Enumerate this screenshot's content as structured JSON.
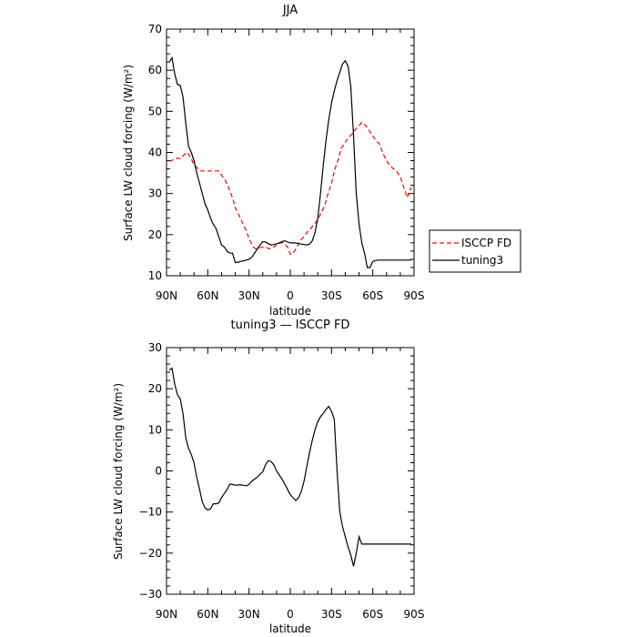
{
  "chart_data": [
    {
      "type": "line",
      "title": "JJA",
      "xlabel": "latitude",
      "ylabel": "Surface LW cloud forcing (W/m²)",
      "ylim": [
        10,
        70
      ],
      "xlim": [
        90,
        -90
      ],
      "xticks": [
        90,
        60,
        30,
        0,
        -30,
        -60,
        -90
      ],
      "xticklabels": [
        "90N",
        "60N",
        "30N",
        "0",
        "30S",
        "60S",
        "90S"
      ],
      "yticks": [
        10,
        20,
        30,
        40,
        50,
        60,
        70
      ],
      "yticklabels": [
        "10",
        "20",
        "30",
        "40",
        "50",
        "60",
        "70"
      ],
      "grid": false,
      "legend": "right",
      "series": [
        {
          "name": "ISCCP FD",
          "color": "#ff0000",
          "dash": "dashed",
          "x": [
            88,
            85,
            82,
            80,
            77,
            75,
            72,
            70,
            67,
            65,
            62,
            60,
            57,
            55,
            52,
            50,
            47,
            45,
            42,
            40,
            37,
            35,
            32,
            30,
            27,
            25,
            22,
            20,
            17,
            15,
            12,
            10,
            7,
            5,
            2,
            0,
            -2,
            -5,
            -7,
            -10,
            -12,
            -15,
            -17,
            -20,
            -22,
            -25,
            -27,
            -30,
            -32,
            -35,
            -37,
            -40,
            -42,
            -45,
            -47,
            -50,
            -52,
            -55,
            -57,
            -60,
            -62,
            -65,
            -67,
            -70,
            -72,
            -75,
            -77,
            -80,
            -82,
            -85,
            -88
          ],
          "values": [
            37.8,
            38.2,
            38.6,
            38.5,
            39.5,
            40,
            38.5,
            37,
            36,
            35.5,
            35.5,
            35.5,
            35.5,
            35.5,
            35.5,
            34.5,
            33,
            31.5,
            29,
            26.5,
            24.5,
            23,
            21,
            19,
            17,
            16.5,
            16.8,
            17,
            16.8,
            16.5,
            17,
            17.5,
            18,
            18,
            17,
            15.2,
            15.5,
            17,
            18.5,
            19.5,
            20.5,
            21.5,
            22.5,
            23.5,
            25,
            27,
            29.5,
            32.5,
            35.5,
            38.5,
            41,
            42.5,
            43.5,
            44.5,
            45.5,
            46.5,
            47.3,
            46.5,
            45.5,
            44,
            43,
            42,
            40,
            38,
            37,
            36,
            35.5,
            34,
            32,
            29,
            31.5
          ]
        },
        {
          "name": "tuning3",
          "color": "#000000",
          "dash": "solid",
          "x": [
            88,
            86,
            84,
            82,
            80,
            78,
            76,
            74,
            72,
            70,
            68,
            66,
            64,
            62,
            60,
            58,
            56,
            54,
            52,
            50,
            48,
            46,
            44,
            42,
            40,
            38,
            36,
            34,
            32,
            30,
            28,
            26,
            24,
            22,
            20,
            18,
            16,
            14,
            12,
            10,
            8,
            6,
            4,
            2,
            0,
            -2,
            -4,
            -6,
            -8,
            -10,
            -12,
            -14,
            -16,
            -18,
            -20,
            -22,
            -24,
            -26,
            -28,
            -30,
            -32,
            -34,
            -36,
            -38,
            -40,
            -42,
            -44,
            -46,
            -48,
            -50,
            -52,
            -54,
            -56,
            -58,
            -60,
            -62,
            -64,
            -66,
            -68,
            -70,
            -72,
            -74,
            -76,
            -78,
            -80,
            -82,
            -84,
            -86,
            -88
          ],
          "values": [
            62,
            63,
            59,
            56.5,
            56.3,
            53.5,
            47,
            41.5,
            40,
            38,
            35,
            32.5,
            30,
            27.5,
            26,
            24,
            22.5,
            21.5,
            19.5,
            17.5,
            17,
            16,
            15.5,
            15.5,
            13.2,
            13.3,
            13.5,
            13.6,
            13.8,
            14,
            14.5,
            15.5,
            16.5,
            17.5,
            18.3,
            18.2,
            17.8,
            17.5,
            17.6,
            17.8,
            18,
            18.3,
            18.5,
            18.2,
            18,
            18,
            18,
            17.8,
            17.7,
            17.6,
            17.5,
            17.7,
            18.5,
            20.5,
            24,
            30,
            37,
            43,
            48,
            52,
            55,
            57.5,
            59.5,
            61.5,
            62.3,
            61,
            56,
            44,
            30,
            22.5,
            18,
            15.5,
            12,
            12,
            13.5,
            13.7,
            13.8,
            13.8,
            13.8,
            13.8,
            13.8,
            13.8,
            13.8,
            13.8,
            13.8,
            13.8,
            13.8,
            13.8,
            13.8
          ]
        }
      ]
    },
    {
      "type": "line",
      "title": "tuning3 — ISCCP FD",
      "xlabel": "latitude",
      "ylabel": "Surface LW cloud forcing (W/m²)",
      "ylim": [
        -30,
        30
      ],
      "xlim": [
        90,
        -90
      ],
      "xticks": [
        90,
        60,
        30,
        0,
        -30,
        -60,
        -90
      ],
      "xticklabels": [
        "90N",
        "60N",
        "30N",
        "0",
        "30S",
        "60S",
        "90S"
      ],
      "yticks": [
        -30,
        -20,
        -10,
        0,
        10,
        20,
        30
      ],
      "yticklabels": [
        "−30",
        "−20",
        "−10",
        "0",
        "10",
        "20",
        "30"
      ],
      "grid": false,
      "series": [
        {
          "color": "#000000",
          "dash": "solid",
          "x": [
            88,
            86,
            84,
            82,
            80,
            78,
            76,
            74,
            72,
            70,
            68,
            66,
            64,
            62,
            60,
            58,
            56,
            54,
            52,
            50,
            48,
            46,
            44,
            42,
            40,
            38,
            36,
            34,
            32,
            30,
            28,
            26,
            24,
            22,
            20,
            18,
            16,
            14,
            12,
            10,
            8,
            6,
            4,
            2,
            0,
            -2,
            -4,
            -6,
            -8,
            -10,
            -12,
            -14,
            -16,
            -18,
            -20,
            -22,
            -24,
            -26,
            -28,
            -30,
            -32,
            -34,
            -36,
            -38,
            -40,
            -42,
            -44,
            -46,
            -48,
            -50,
            -52,
            -54,
            -56,
            -58,
            -60,
            -62,
            -64,
            -66,
            -68,
            -70,
            -72,
            -74,
            -76,
            -78,
            -80,
            -82,
            -84,
            -86,
            -88
          ],
          "values": [
            24.5,
            25,
            21,
            18.5,
            17.5,
            14,
            8,
            5.5,
            4,
            2,
            -1.5,
            -4.5,
            -7.5,
            -9,
            -9.5,
            -9.2,
            -8,
            -8,
            -7.8,
            -6.5,
            -5.5,
            -4.5,
            -3.2,
            -3.3,
            -3.5,
            -3.4,
            -3.4,
            -3.5,
            -3.6,
            -3.3,
            -2.5,
            -2,
            -1.5,
            -0.8,
            -0.2,
            1.5,
            2.5,
            2.3,
            1.5,
            0,
            -1,
            -2,
            -3.2,
            -4.5,
            -5.8,
            -6.5,
            -7.2,
            -6.5,
            -5,
            -2.5,
            1,
            4.5,
            7.5,
            10,
            12,
            13.2,
            14,
            15,
            15.7,
            14.5,
            12.5,
            0,
            -10,
            -13.5,
            -16,
            -18.5,
            -20.5,
            -23.2,
            -20,
            -16,
            -17.8,
            -17.8,
            -17.8,
            -17.8,
            -17.8,
            -17.8,
            -17.8,
            -17.8,
            -17.8,
            -17.8,
            -17.8,
            -17.8,
            -17.8,
            -17.8,
            -17.8,
            -17.8,
            -17.8,
            -17.8,
            -17.8
          ]
        }
      ]
    }
  ]
}
